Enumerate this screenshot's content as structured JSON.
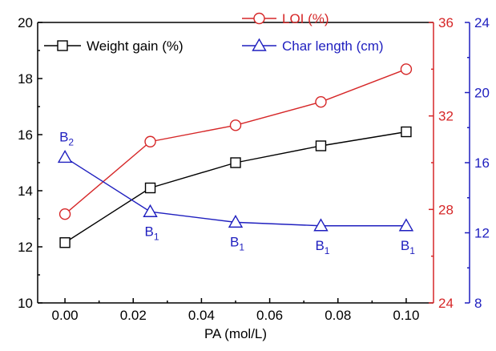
{
  "chart_data": {
    "type": "line",
    "xlabel": "PA (mol/L)",
    "x_ticks": [
      "0.00",
      "0.02",
      "0.04",
      "0.06",
      "0.08",
      "0.10"
    ],
    "xlim": [
      -0.008,
      0.108
    ],
    "axes": {
      "left": {
        "ylim": [
          10,
          20
        ],
        "ticks": [
          "10",
          "12",
          "14",
          "16",
          "18",
          "20"
        ],
        "color": "#000000"
      },
      "right_inner": {
        "ylim": [
          24,
          36
        ],
        "ticks": [
          "24",
          "28",
          "32",
          "36"
        ],
        "color": "#d62728"
      },
      "right_outer": {
        "ylim": [
          8,
          24
        ],
        "ticks": [
          "8",
          "12",
          "16",
          "20",
          "24"
        ],
        "color": "#1f1fbf"
      }
    },
    "series": [
      {
        "name": "Weight gain (%)",
        "axis": "left",
        "marker": "square",
        "color": "#000000",
        "x": [
          0.0,
          0.025,
          0.05,
          0.075,
          0.1
        ],
        "values": [
          12.15,
          14.1,
          15.0,
          15.6,
          16.1
        ]
      },
      {
        "name": "LOI (%)",
        "axis": "right_inner",
        "marker": "circle",
        "color": "#d62728",
        "x": [
          0.0,
          0.025,
          0.05,
          0.075,
          0.1
        ],
        "values": [
          27.8,
          30.9,
          31.6,
          32.6,
          34.0
        ]
      },
      {
        "name": "Char length (cm)",
        "axis": "right_outer",
        "marker": "triangle",
        "color": "#1f1fbf",
        "x": [
          0.0,
          0.025,
          0.05,
          0.075,
          0.1
        ],
        "values": [
          16.3,
          13.2,
          12.6,
          12.4,
          12.4
        ]
      }
    ],
    "annotations": [
      {
        "base": "B",
        "sub": "2",
        "x": 0.0
      },
      {
        "base": "B",
        "sub": "1",
        "x": 0.025
      },
      {
        "base": "B",
        "sub": "1",
        "x": 0.05
      },
      {
        "base": "B",
        "sub": "1",
        "x": 0.075
      },
      {
        "base": "B",
        "sub": "1",
        "x": 0.1
      }
    ],
    "legend": "top"
  }
}
